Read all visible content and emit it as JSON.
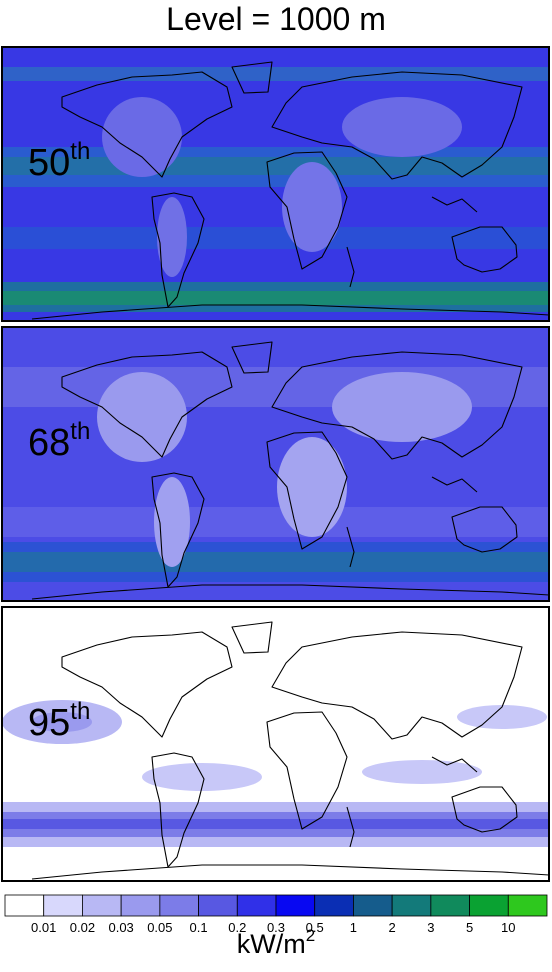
{
  "title": "Level = 1000 m",
  "panels": [
    {
      "number": "50",
      "suffix": "th"
    },
    {
      "number": "68",
      "suffix": "th"
    },
    {
      "number": "95",
      "suffix": "th"
    }
  ],
  "colorbar": {
    "colors": [
      "#ffffff",
      "#d8d8fc",
      "#b8b8f4",
      "#9a9aee",
      "#7c7ce8",
      "#5858e2",
      "#3030e8",
      "#0808f2",
      "#0a2eb4",
      "#155c8c",
      "#137a7a",
      "#108a5c",
      "#0aa232",
      "#2ec81e"
    ],
    "labels": [
      "0.01",
      "0.02",
      "0.03",
      "0.05",
      "0.1",
      "0.2",
      "0.3",
      "0.5",
      "1",
      "2",
      "3",
      "5",
      "10"
    ]
  },
  "unit": {
    "base": "kW/m",
    "exponent": "2"
  }
}
